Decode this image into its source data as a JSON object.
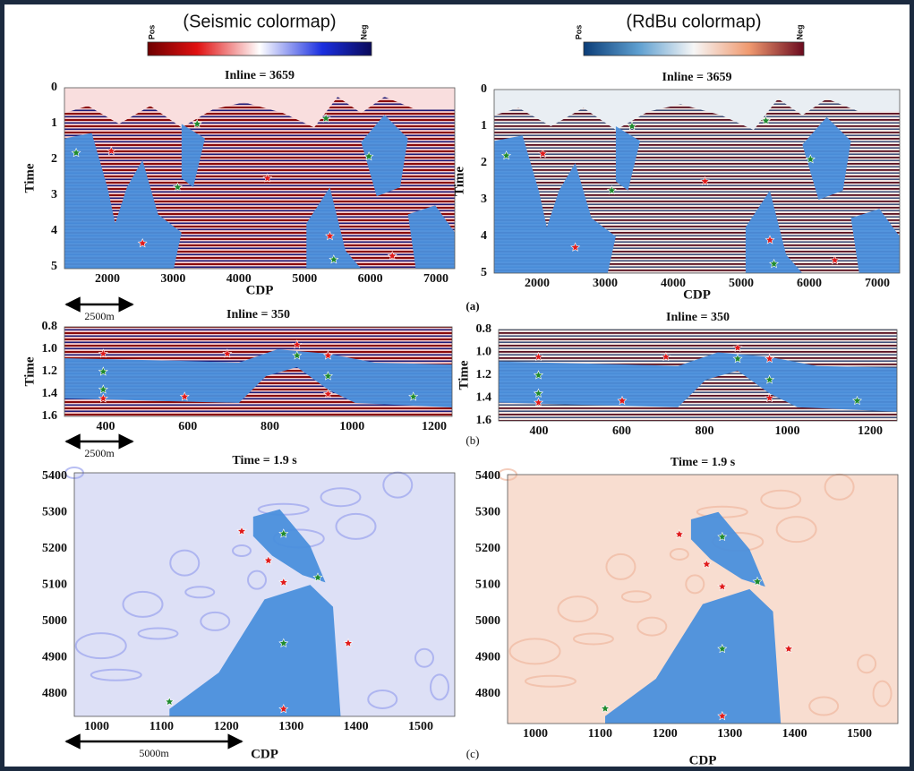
{
  "colorbars": [
    {
      "title": "(Seismic colormap)",
      "pos_label": "Pos",
      "neg_label": "Neg"
    },
    {
      "title": "(RdBu colormap)",
      "pos_label": "Pos",
      "neg_label": "Neg"
    }
  ],
  "panels": [
    {
      "title": "Inline = 3659",
      "y_label": "Time",
      "x_label": "CDP",
      "y_ticks": [
        "0",
        "1",
        "2",
        "3",
        "4",
        "5"
      ],
      "x_ticks": [
        "2000",
        "3000",
        "4000",
        "5000",
        "6000",
        "7000"
      ],
      "scale_bar": "2500m"
    },
    {
      "title": "Inline = 3659",
      "y_label": "Time",
      "x_label": "CDP",
      "y_ticks": [
        "0",
        "1",
        "2",
        "3",
        "4",
        "5"
      ],
      "x_ticks": [
        "2000",
        "3000",
        "4000",
        "5000",
        "6000",
        "7000"
      ]
    },
    {
      "title": "Inline = 350",
      "y_label": "Time",
      "y_ticks": [
        "0.8",
        "1.0",
        "1.2",
        "1.4",
        "1.6"
      ],
      "x_ticks": [
        "400",
        "600",
        "800",
        "1000",
        "1200"
      ],
      "scale_bar": "2500m"
    },
    {
      "title": "Inline = 350",
      "y_label": "Time",
      "y_ticks": [
        "0.8",
        "1.0",
        "1.2",
        "1.4",
        "1.6"
      ],
      "x_ticks": [
        "400",
        "600",
        "800",
        "1000",
        "1200"
      ]
    },
    {
      "title": "Time = 1.9 s",
      "x_label": "CDP",
      "y_ticks": [
        "5400",
        "5300",
        "5200",
        "5100",
        "5000",
        "4900",
        "4800"
      ],
      "x_ticks": [
        "1000",
        "1100",
        "1200",
        "1300",
        "1400",
        "1500"
      ],
      "scale_bar": "5000m"
    },
    {
      "title": "Time = 1.9 s",
      "x_label": "CDP",
      "y_ticks": [
        "5400",
        "5300",
        "5200",
        "5100",
        "5000",
        "4900",
        "4800"
      ],
      "x_ticks": [
        "1000",
        "1100",
        "1200",
        "1300",
        "1400",
        "1500"
      ]
    }
  ],
  "subfigure_tags": [
    "(a)",
    "(b)",
    "(c)"
  ]
}
